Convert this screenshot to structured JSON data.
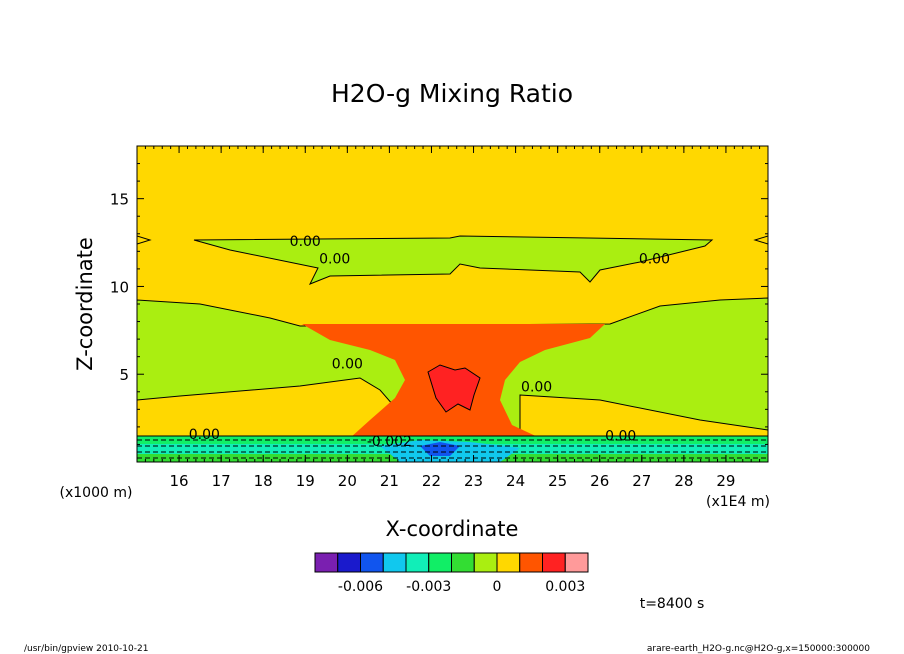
{
  "chart_data": {
    "type": "heatmap",
    "title": "H2O-g Mixing Ratio",
    "xlabel": "X-coordinate",
    "ylabel": "Z-coordinate",
    "x_unit": "(x1E4 m)",
    "y_unit": "(x1000 m)",
    "xlim": [
      15,
      30
    ],
    "ylim": [
      0,
      18
    ],
    "x_ticks": [
      16,
      17,
      18,
      19,
      20,
      21,
      22,
      23,
      24,
      25,
      26,
      27,
      28,
      29
    ],
    "y_ticks": [
      5,
      10,
      15
    ],
    "contour_labels": [
      {
        "text": "0.00",
        "x": 19.0,
        "y": 12.6
      },
      {
        "text": "0.00",
        "x": 27.3,
        "y": 11.6
      },
      {
        "text": "0.00",
        "x": 19.7,
        "y": 11.6
      },
      {
        "text": "0.00",
        "x": 20.0,
        "y": 5.6
      },
      {
        "text": "0.00",
        "x": 24.5,
        "y": 4.3
      },
      {
        "text": "0.00",
        "x": 16.6,
        "y": 1.6
      },
      {
        "text": "0.00",
        "x": 26.5,
        "y": 1.5
      },
      {
        "text": "-0.002",
        "x": 21.0,
        "y": 1.2
      }
    ],
    "colorbar": {
      "colors": [
        "#7a1fb0",
        "#1a1acc",
        "#1155ee",
        "#11c8ee",
        "#11eeb8",
        "#11ee66",
        "#33dd33",
        "#aaee11",
        "#ffd800",
        "#ff5500",
        "#ff2222",
        "#ff9a9a"
      ],
      "tick_labels": [
        "-0.006",
        "-0.003",
        "0",
        "0.003"
      ],
      "tick_values": [
        -0.006,
        -0.003,
        0,
        0.003
      ]
    },
    "annotation": "t=8400 s"
  },
  "footer": {
    "left": "/usr/bin/gpview   2010-10-21",
    "right": "arare-earth_H2O-g.nc@H2O-g,x=150000:300000"
  }
}
